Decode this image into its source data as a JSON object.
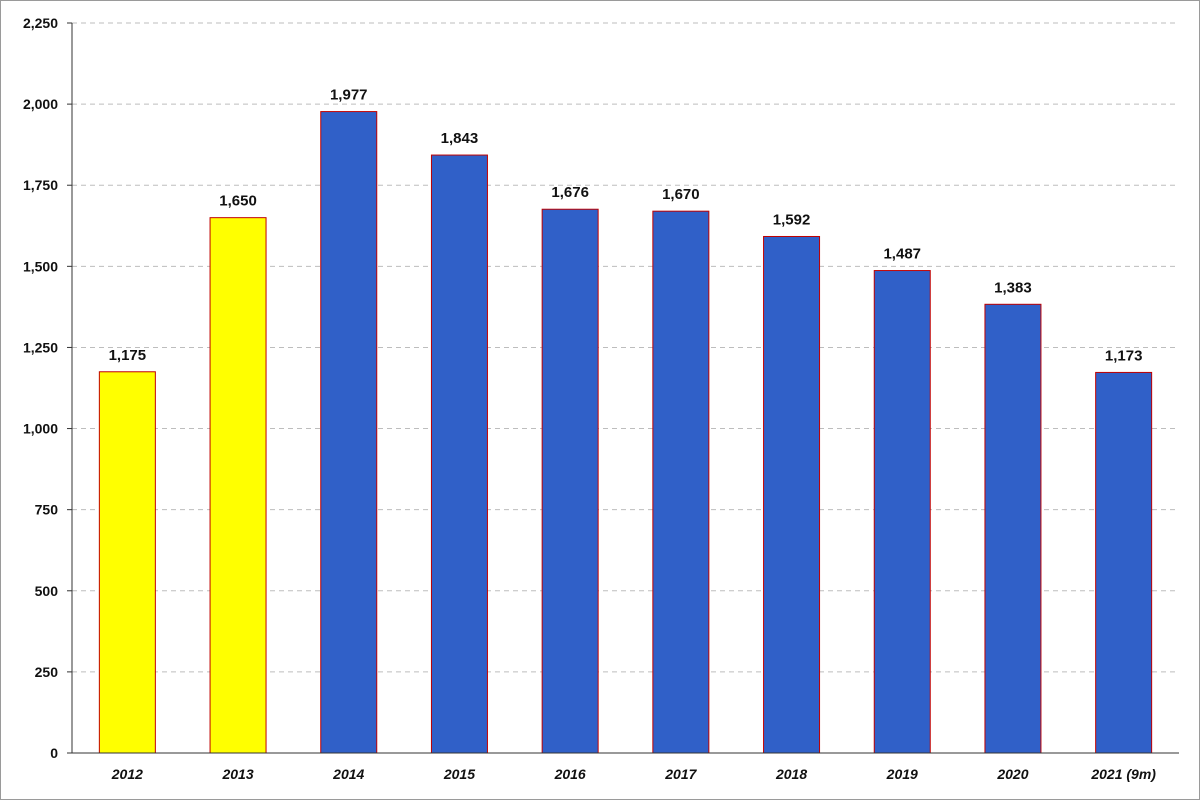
{
  "chart_data": {
    "type": "bar",
    "title": "",
    "xlabel": "",
    "ylabel": "",
    "categories": [
      "2012",
      "2013",
      "2014",
      "2015",
      "2016",
      "2017",
      "2018",
      "2019",
      "2020",
      "2021 (9m)"
    ],
    "values": [
      1175,
      1650,
      1977,
      1843,
      1676,
      1670,
      1592,
      1487,
      1383,
      1173
    ],
    "data_labels": [
      "1,175",
      "1,650",
      "1,977",
      "1,843",
      "1,676",
      "1,670",
      "1,592",
      "1,487",
      "1,383",
      "1,173"
    ],
    "bar_colors": [
      "#ffff00",
      "#ffff00",
      "#3060c8",
      "#3060c8",
      "#3060c8",
      "#3060c8",
      "#3060c8",
      "#3060c8",
      "#3060c8",
      "#3060c8"
    ],
    "bar_border_color": "#c00000",
    "ylim": [
      0,
      2250
    ],
    "yticks": [
      0,
      250,
      500,
      750,
      1000,
      1250,
      1500,
      1750,
      2000,
      2250
    ],
    "ytick_labels": [
      "0",
      "250",
      "500",
      "750",
      "1,000",
      "1,250",
      "1,500",
      "1,750",
      "2,000",
      "2,250"
    ],
    "grid": true,
    "grid_style": "dashed",
    "legend": "none"
  }
}
